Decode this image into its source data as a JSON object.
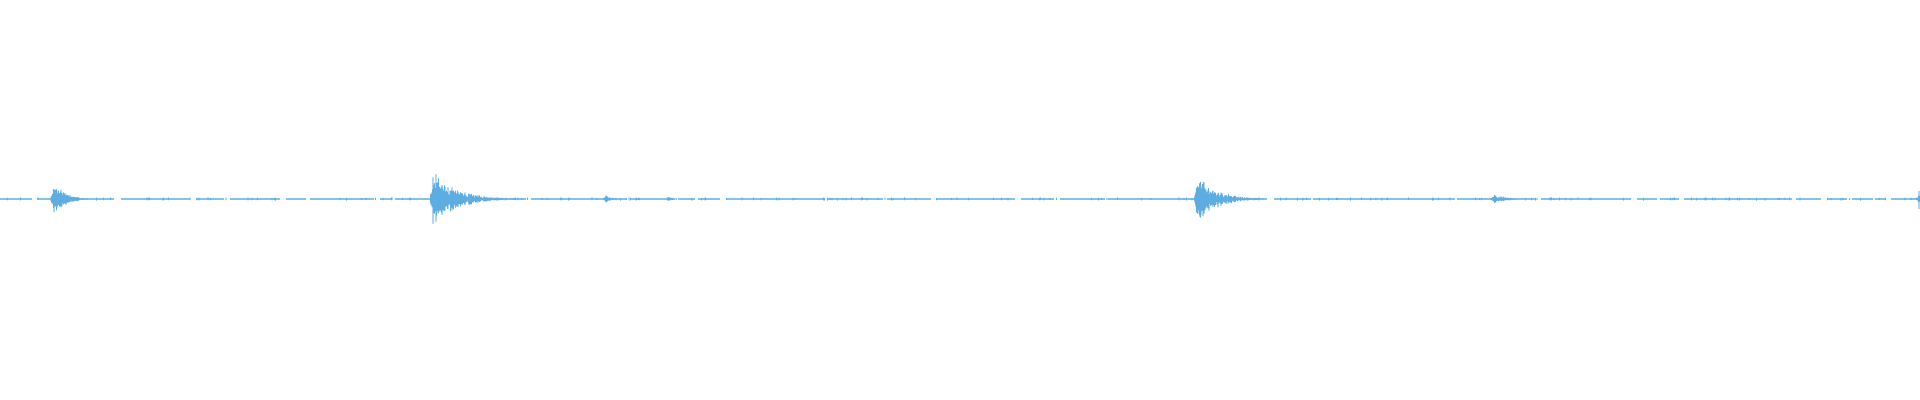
{
  "waveform": {
    "color": "#5dade2",
    "background": "#ffffff",
    "baseline_amplitude": 0.004,
    "bursts": [
      {
        "time_fraction": 0.028,
        "peak_amplitude": 0.09,
        "decay": 0.006
      },
      {
        "time_fraction": 0.2255,
        "peak_amplitude": 0.15,
        "decay": 0.012
      },
      {
        "time_fraction": 0.3155,
        "peak_amplitude": 0.02,
        "decay": 0.004
      },
      {
        "time_fraction": 0.348,
        "peak_amplitude": 0.012,
        "decay": 0.004
      },
      {
        "time_fraction": 0.6235,
        "peak_amplitude": 0.13,
        "decay": 0.01
      },
      {
        "time_fraction": 0.778,
        "peak_amplitude": 0.03,
        "decay": 0.006
      },
      {
        "time_fraction": 0.9995,
        "peak_amplitude": 0.045,
        "decay": 0.0005
      }
    ]
  }
}
